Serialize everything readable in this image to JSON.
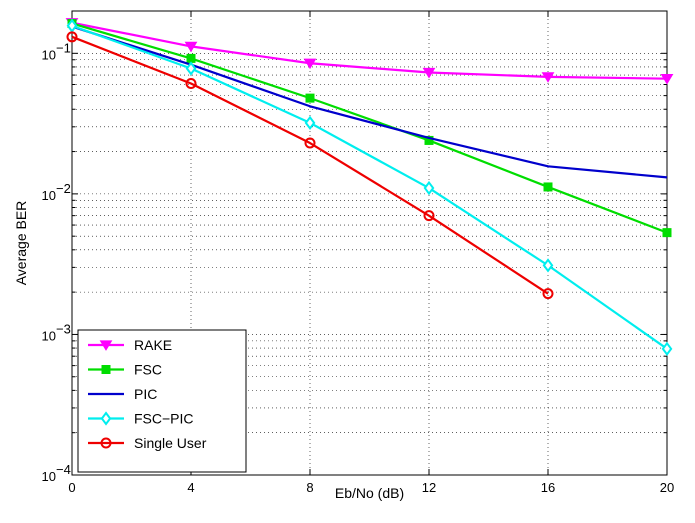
{
  "chart_data": {
    "type": "line",
    "xlabel": "Eb/No (dB)",
    "ylabel": "Average BER",
    "xlim": [
      0,
      20
    ],
    "ylim": [
      0.0001,
      0.2
    ],
    "yscale": "log",
    "grid": true,
    "legend_position": "bottom-left",
    "x_ticks": [
      0,
      4,
      8,
      12,
      16,
      20
    ],
    "y_ticks": [
      {
        "value": 0.1,
        "base": "10",
        "exp": "−1"
      },
      {
        "value": 0.01,
        "base": "10",
        "exp": "−2"
      },
      {
        "value": 0.001,
        "base": "10",
        "exp": "−3"
      },
      {
        "value": 0.0001,
        "base": "10",
        "exp": "−4"
      }
    ],
    "series": [
      {
        "name": "RAKE",
        "color": "#ff00ff",
        "marker": "triangle-down",
        "x": [
          0,
          4,
          8,
          12,
          16,
          20
        ],
        "y": [
          0.165,
          0.112,
          0.085,
          0.073,
          0.068,
          0.066
        ]
      },
      {
        "name": "FSC",
        "color": "#00dd00",
        "marker": "square",
        "x": [
          0,
          4,
          8,
          12,
          16,
          20
        ],
        "y": [
          0.163,
          0.092,
          0.048,
          0.024,
          0.0112,
          0.0053
        ]
      },
      {
        "name": "PIC",
        "color": "#0000cc",
        "marker": "none",
        "x": [
          0,
          4,
          8,
          12,
          16,
          20
        ],
        "y": [
          0.155,
          0.083,
          0.042,
          0.025,
          0.0157,
          0.0131
        ]
      },
      {
        "name": "FSC−PIC",
        "color": "#00eeee",
        "marker": "diamond",
        "x": [
          0,
          4,
          8,
          12,
          16,
          20
        ],
        "y": [
          0.157,
          0.078,
          0.032,
          0.011,
          0.0031,
          0.00079
        ]
      },
      {
        "name": "Single User",
        "color": "#ee0000",
        "marker": "circle",
        "x": [
          0,
          4,
          8,
          12,
          16
        ],
        "y": [
          0.131,
          0.061,
          0.023,
          0.007,
          0.00195
        ]
      }
    ]
  }
}
